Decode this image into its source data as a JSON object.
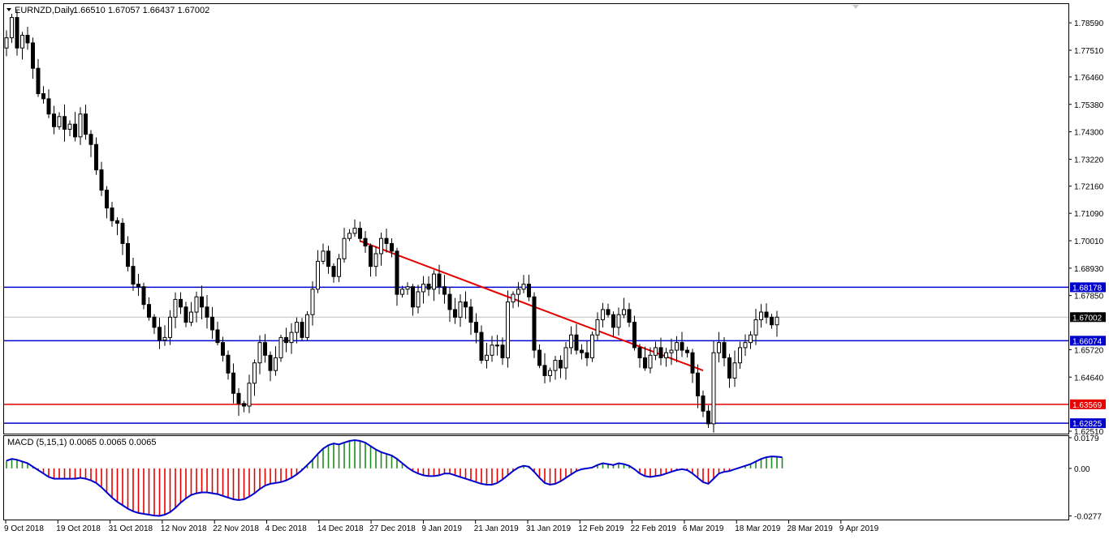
{
  "header": {
    "symbol_label": "EURNZD,Daily",
    "ohlc_label": "1.66510 1.67057 1.66437 1.67002",
    "macd_label": "MACD (5,15,1) 0.0065 0.0065 0.0065"
  },
  "colors": {
    "background": "#ffffff",
    "frame": "#000000",
    "candle": "#000000",
    "support_line": "#0000cd",
    "red_line": "#e60000",
    "trendline": "#e60000",
    "price_line": "#c0c0c0",
    "macd_positive": "#228b22",
    "macd_negative": "#e60000",
    "macd_signal": "#0000cd"
  },
  "chart_data": [
    {
      "type": "candlestick",
      "symbol": "EURNZD",
      "timeframe": "Daily",
      "ylim": [
        1.6251,
        1.7917
      ],
      "y_ticks": [
        "1.78590",
        "1.77510",
        "1.76460",
        "1.75380",
        "1.74300",
        "1.73220",
        "1.72160",
        "1.71090",
        "1.70010",
        "1.68930",
        "1.67850",
        "1.65720",
        "1.64640",
        "1.62510"
      ],
      "x_ticks": [
        "9 Oct 2018",
        "19 Oct 2018",
        "31 Oct 2018",
        "12 Nov 2018",
        "22 Nov 2018",
        "4 Dec 2018",
        "14 Dec 2018",
        "27 Dec 2018",
        "9 Jan 2019",
        "21 Jan 2019",
        "31 Jan 2019",
        "12 Feb 2019",
        "22 Feb 2019",
        "6 Mar 2019",
        "18 Mar 2019",
        "28 Mar 2019",
        "9 Apr 2019"
      ],
      "closes": [
        1.78,
        1.788,
        1.776,
        1.781,
        1.778,
        1.768,
        1.758,
        1.756,
        1.75,
        1.745,
        1.749,
        1.744,
        1.746,
        1.741,
        1.75,
        1.742,
        1.738,
        1.728,
        1.72,
        1.713,
        1.708,
        1.707,
        1.699,
        1.69,
        1.683,
        1.682,
        1.675,
        1.67,
        1.666,
        1.661,
        1.662,
        1.67,
        1.677,
        1.674,
        1.668,
        1.672,
        1.678,
        1.674,
        1.67,
        1.665,
        1.66,
        1.655,
        1.648,
        1.64,
        1.636,
        1.635,
        1.644,
        1.652,
        1.66,
        1.655,
        1.649,
        1.654,
        1.662,
        1.66,
        1.664,
        1.668,
        1.662,
        1.671,
        1.681,
        1.692,
        1.696,
        1.69,
        1.686,
        1.693,
        1.701,
        1.703,
        1.705,
        1.701,
        1.698,
        1.69,
        1.695,
        1.701,
        1.699,
        1.696,
        1.679,
        1.681,
        1.682,
        1.674,
        1.68,
        1.683,
        1.681,
        1.687,
        1.682,
        1.679,
        1.673,
        1.67,
        1.676,
        1.674,
        1.668,
        1.664,
        1.653,
        1.655,
        1.659,
        1.659,
        1.654,
        1.676,
        1.679,
        1.681,
        1.683,
        1.678,
        1.657,
        1.651,
        1.647,
        1.649,
        1.653,
        1.65,
        1.658,
        1.663,
        1.657,
        1.656,
        1.654,
        1.663,
        1.669,
        1.673,
        1.671,
        1.666,
        1.671,
        1.673,
        1.668,
        1.658,
        1.654,
        1.65,
        1.655,
        1.658,
        1.654,
        1.656,
        1.657,
        1.66,
        1.657,
        1.656,
        1.648,
        1.639,
        1.633,
        1.628,
        1.656,
        1.66,
        1.654,
        1.646,
        1.652,
        1.658,
        1.66,
        1.663,
        1.669,
        1.672,
        1.67,
        1.667,
        1.67
      ],
      "horizontal_levels": [
        {
          "value": 1.68178,
          "label": "1.68178",
          "color": "blue"
        },
        {
          "value": 1.66074,
          "label": "1.66074",
          "color": "blue"
        },
        {
          "value": 1.63569,
          "label": "1.63569",
          "color": "red"
        },
        {
          "value": 1.62825,
          "label": "1.62825",
          "color": "blue"
        }
      ],
      "current_price": {
        "value": 1.67002,
        "label": "1.67002"
      },
      "trendline": {
        "start": {
          "bar": 67,
          "price": 1.7
        },
        "end": {
          "bar": 132,
          "price": 1.649
        }
      }
    },
    {
      "type": "bar",
      "name": "MACD (5,15,1)",
      "ylim": [
        -0.0284,
        0.0179
      ],
      "y_ticks": [
        "0.0179",
        "0.00",
        "-0.0277"
      ],
      "values": [
        0.0045,
        0.0055,
        0.005,
        0.004,
        0.003,
        0.001,
        -0.001,
        -0.003,
        -0.005,
        -0.006,
        -0.006,
        -0.006,
        -0.006,
        -0.006,
        -0.0055,
        -0.006,
        -0.007,
        -0.0085,
        -0.011,
        -0.014,
        -0.017,
        -0.0195,
        -0.0215,
        -0.0235,
        -0.025,
        -0.026,
        -0.0265,
        -0.027,
        -0.0275,
        -0.0277,
        -0.027,
        -0.0255,
        -0.023,
        -0.02,
        -0.0175,
        -0.0155,
        -0.0145,
        -0.014,
        -0.014,
        -0.0145,
        -0.015,
        -0.016,
        -0.017,
        -0.018,
        -0.0185,
        -0.018,
        -0.0165,
        -0.0145,
        -0.012,
        -0.01,
        -0.009,
        -0.0085,
        -0.008,
        -0.007,
        -0.0055,
        -0.0035,
        -0.001,
        0.002,
        0.005,
        0.0085,
        0.0115,
        0.0135,
        0.0145,
        0.014,
        0.015,
        0.016,
        0.0165,
        0.016,
        0.015,
        0.013,
        0.011,
        0.0095,
        0.0085,
        0.0075,
        0.0055,
        0.003,
        0.0005,
        -0.0015,
        -0.003,
        -0.004,
        -0.0045,
        -0.0045,
        -0.004,
        -0.003,
        -0.003,
        -0.004,
        -0.005,
        -0.006,
        -0.007,
        -0.008,
        -0.009,
        -0.0095,
        -0.0095,
        -0.0085,
        -0.0065,
        -0.004,
        -0.0015,
        0.0005,
        0.0015,
        0.001,
        -0.002,
        -0.0055,
        -0.0085,
        -0.0095,
        -0.009,
        -0.0075,
        -0.0055,
        -0.0035,
        -0.0015,
        -0.0005,
        0.0,
        0.0005,
        0.002,
        0.003,
        0.0025,
        0.002,
        0.003,
        0.0025,
        0.0015,
        -0.0005,
        -0.003,
        -0.0045,
        -0.005,
        -0.0045,
        -0.004,
        -0.003,
        -0.002,
        -0.001,
        -0.0005,
        -0.001,
        -0.003,
        -0.0055,
        -0.008,
        -0.009,
        -0.006,
        -0.003,
        -0.002,
        -0.0015,
        -0.0005,
        0.0005,
        0.0015,
        0.0025,
        0.004,
        0.0055,
        0.0065,
        0.007,
        0.0068,
        0.0065
      ]
    }
  ]
}
